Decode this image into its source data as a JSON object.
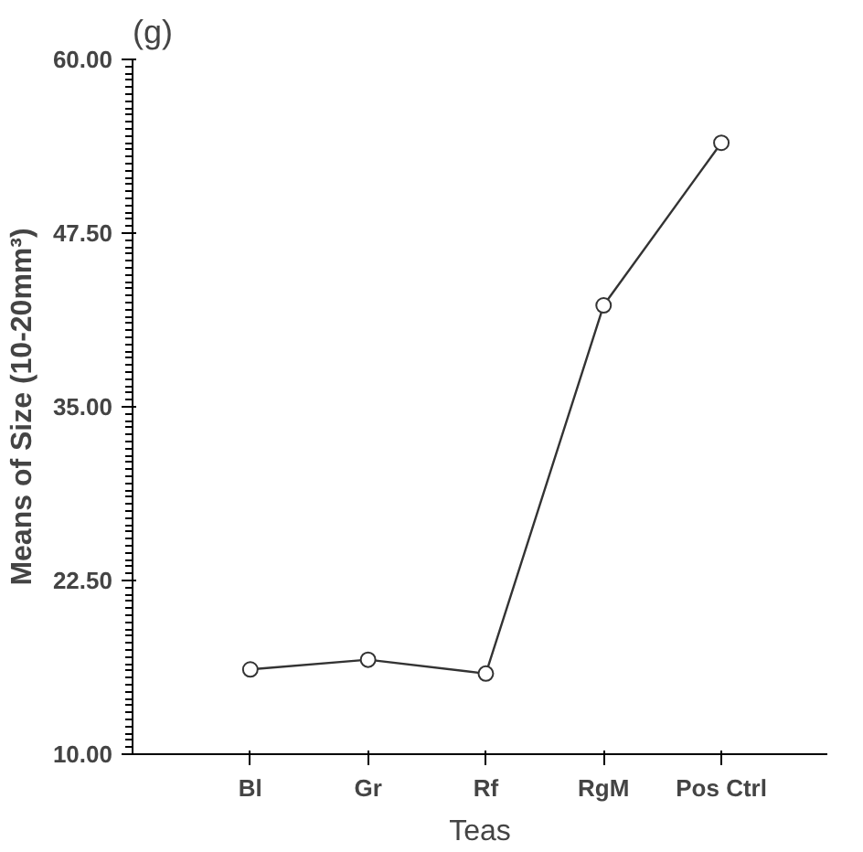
{
  "chart_data": {
    "type": "line",
    "title": "(g)",
    "xlabel": "Teas",
    "ylabel": "Means of Size (10-20mm³)",
    "categories": [
      "Bl",
      "Gr",
      "Rf",
      "RgM",
      "Pos Ctrl"
    ],
    "series": [
      {
        "color": "#333333",
        "values": [
          16.1,
          16.8,
          15.8,
          42.3,
          54.0
        ]
      }
    ],
    "ylim": [
      10,
      60
    ],
    "yticks": [
      {
        "value": 10,
        "label": "10.00"
      },
      {
        "value": 22.5,
        "label": "22.50"
      },
      {
        "value": 35,
        "label": "35.00"
      },
      {
        "value": 47.5,
        "label": "47.50"
      },
      {
        "value": 60,
        "label": "60.00"
      }
    ],
    "marker": "circle",
    "line_style": "solid",
    "grid": false
  }
}
